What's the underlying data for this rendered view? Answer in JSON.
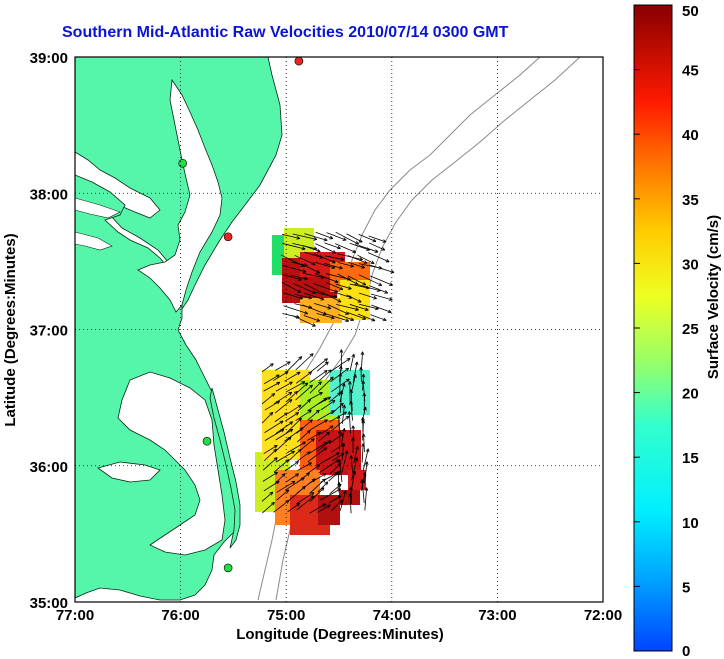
{
  "title": "Southern Mid-Atlantic Raw Velocities 2010/07/14 0300 GMT",
  "map": {
    "xlabel": "Longitude (Degrees:Minutes)",
    "ylabel": "Latitude (Degrees:Minutes)",
    "lon_ticks": [
      "77:00",
      "76:00",
      "75:00",
      "74:00",
      "73:00",
      "72:00"
    ],
    "lat_ticks": [
      "39:00",
      "38:00",
      "37:00",
      "36:00",
      "35:00"
    ],
    "lon_range": [
      -77,
      -72
    ],
    "lat_range": [
      35,
      39
    ],
    "land_color": "#55f5aa",
    "grid": "dotted",
    "stations": [
      {
        "lon": -74.88,
        "lat": 38.97,
        "color": "#ee2222"
      },
      {
        "lon": -75.98,
        "lat": 38.22,
        "color": "#22dd44"
      },
      {
        "lon": -75.55,
        "lat": 37.68,
        "color": "#ee2222"
      },
      {
        "lon": -75.75,
        "lat": 36.18,
        "color": "#22dd44"
      },
      {
        "lon": -75.55,
        "lat": 35.25,
        "color": "#22dd44"
      }
    ]
  },
  "colorbar": {
    "label": "Surface Velocity (cm/s)",
    "ticks": [
      "0",
      "5",
      "10",
      "15",
      "20",
      "25",
      "30",
      "35",
      "40",
      "45",
      "50"
    ],
    "min": 0,
    "max": 50
  }
}
